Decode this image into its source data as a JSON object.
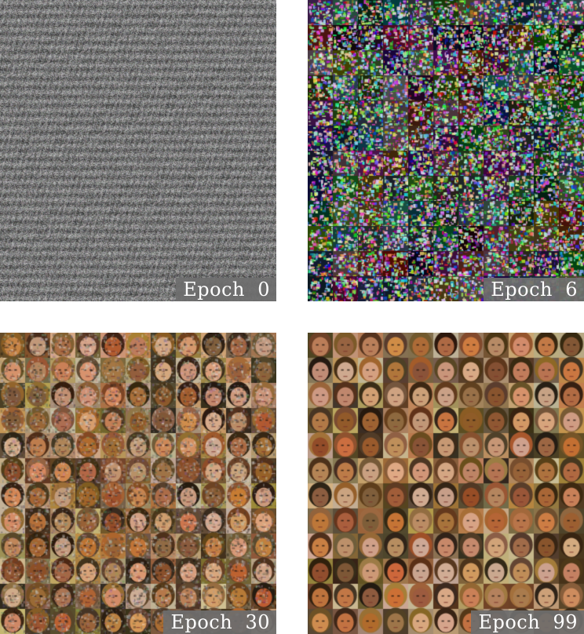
{
  "panels": [
    {
      "id": "epoch-0",
      "label": "Epoch  0",
      "style": "noise"
    },
    {
      "id": "epoch-6",
      "label": "Epoch  6",
      "style": "color-noise-grid"
    },
    {
      "id": "epoch-30",
      "label": "Epoch  30",
      "style": "blurry-faces-grid"
    },
    {
      "id": "epoch-99",
      "label": "Epoch  99",
      "style": "faces-grid"
    }
  ],
  "grid": {
    "rows": 12,
    "cols": 11
  }
}
